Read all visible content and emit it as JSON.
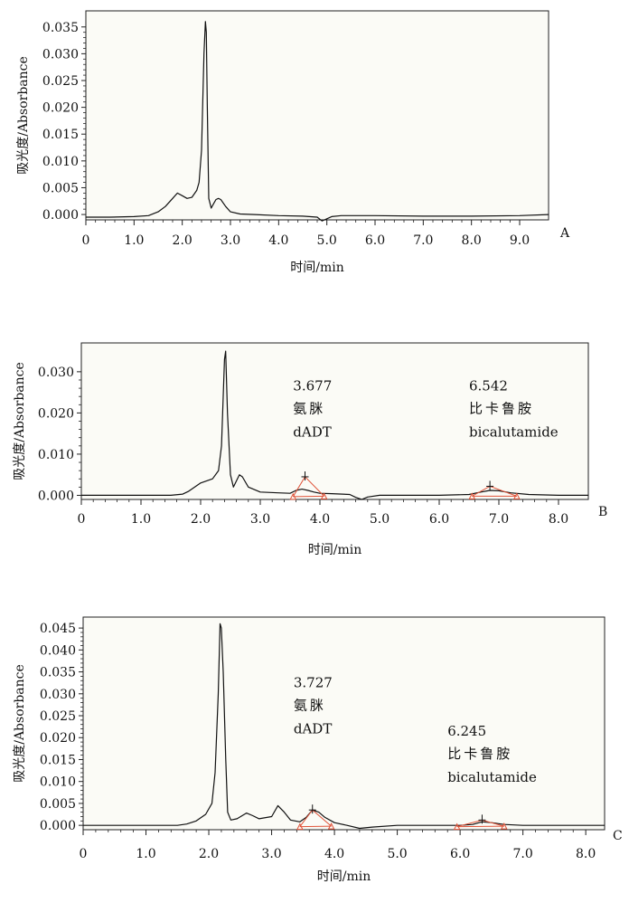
{
  "chart_data": [
    {
      "type": "line",
      "panel_label": "A",
      "xlabel": "时间/min",
      "ylabel": "吸光度/Absorbance",
      "xlim": [
        0,
        9.6
      ],
      "ylim": [
        -0.001,
        0.038
      ],
      "x_ticks": [
        0,
        1.0,
        2.0,
        3.0,
        4.0,
        5.0,
        6.0,
        7.0,
        8.0,
        9.0
      ],
      "x_tick_labels": [
        "0",
        "1.0",
        "2.0",
        "3.0",
        "4.0",
        "5.0",
        "6.0",
        "7.0",
        "8.0",
        "9.0"
      ],
      "y_ticks": [
        0.0,
        0.005,
        0.01,
        0.015,
        0.02,
        0.025,
        0.03,
        0.035
      ],
      "y_tick_labels": [
        "0.000",
        "0.005",
        "0.010",
        "0.015",
        "0.020",
        "0.025",
        "0.030",
        "0.035"
      ],
      "series": [
        {
          "x": [
            0,
            0.5,
            1.0,
            1.3,
            1.5,
            1.65,
            1.8,
            1.9,
            2.0,
            2.1,
            2.2,
            2.3,
            2.35,
            2.4,
            2.45,
            2.48,
            2.5,
            2.52,
            2.55,
            2.6,
            2.65,
            2.7,
            2.75,
            2.8,
            2.9,
            3.0,
            3.2,
            3.5,
            4.0,
            4.5,
            4.8,
            4.9,
            5.0,
            5.1,
            5.3,
            6.0,
            7.0,
            8.0,
            9.0,
            9.6
          ],
          "y": [
            -0.0005,
            -0.0005,
            -0.0004,
            -0.0002,
            0.0005,
            0.0015,
            0.003,
            0.004,
            0.0035,
            0.003,
            0.0032,
            0.0045,
            0.006,
            0.012,
            0.03,
            0.036,
            0.034,
            0.02,
            0.003,
            0.0012,
            0.002,
            0.0028,
            0.003,
            0.0028,
            0.0015,
            0.0005,
            0.0001,
            0.0,
            -0.0002,
            -0.0003,
            -0.0005,
            -0.0012,
            -0.0008,
            -0.0004,
            -0.0002,
            -0.0002,
            -0.0003,
            -0.0003,
            -0.0002,
            0.0
          ]
        }
      ],
      "annotations": []
    },
    {
      "type": "line",
      "panel_label": "B",
      "xlabel": "时间/min",
      "ylabel": "吸光度/Absorbance",
      "xlim": [
        0,
        8.5
      ],
      "ylim": [
        -0.001,
        0.037
      ],
      "x_ticks": [
        0,
        1.0,
        2.0,
        3.0,
        4.0,
        5.0,
        6.0,
        7.0,
        8.0
      ],
      "x_tick_labels": [
        "0",
        "1.0",
        "2.0",
        "3.0",
        "4.0",
        "5.0",
        "6.0",
        "7.0",
        "8.0"
      ],
      "y_ticks": [
        0.0,
        0.01,
        0.02,
        0.03
      ],
      "y_tick_labels": [
        "0.000",
        "0.010",
        "0.020",
        "0.030"
      ],
      "series": [
        {
          "x": [
            0,
            1.0,
            1.5,
            1.7,
            1.8,
            2.0,
            2.2,
            2.3,
            2.35,
            2.4,
            2.42,
            2.45,
            2.5,
            2.55,
            2.6,
            2.65,
            2.7,
            2.8,
            3.0,
            3.3,
            3.5,
            3.6,
            3.7,
            3.8,
            3.9,
            4.0,
            4.2,
            4.5,
            4.6,
            4.7,
            4.8,
            5.0,
            6.0,
            6.5,
            6.7,
            6.85,
            7.0,
            7.2,
            7.5,
            8.0,
            8.5
          ],
          "y": [
            0.0,
            0.0,
            0.0,
            0.0003,
            0.001,
            0.003,
            0.004,
            0.006,
            0.012,
            0.033,
            0.035,
            0.02,
            0.005,
            0.002,
            0.0035,
            0.005,
            0.0045,
            0.002,
            0.0008,
            0.0006,
            0.0005,
            0.0012,
            0.0015,
            0.0012,
            0.0008,
            0.0005,
            0.0004,
            0.0002,
            -0.0005,
            -0.001,
            -0.0004,
            0.0,
            0.0,
            0.0002,
            0.0008,
            0.0012,
            0.0011,
            0.0006,
            0.0002,
            0.0,
            0.0
          ]
        }
      ],
      "annotations": [
        {
          "retention_time": "3.677",
          "name_cn": "氨脒",
          "name_en": "dADT",
          "apex_x": 3.75,
          "apex_y": 0.0045,
          "base_start_x": 3.55,
          "base_start_y": -0.0003,
          "base_end_x": 4.07,
          "base_end_y": -0.0002,
          "label_x": 3.55,
          "label_y": 0.0255
        },
        {
          "retention_time": "6.542",
          "name_cn": "比卡鲁胺",
          "name_en": "bicalutamide",
          "apex_x": 6.85,
          "apex_y": 0.0022,
          "base_start_x": 6.55,
          "base_start_y": -0.0002,
          "base_end_x": 7.3,
          "base_end_y": -0.0002,
          "label_x": 6.5,
          "label_y": 0.0255
        }
      ]
    },
    {
      "type": "line",
      "panel_label": "C",
      "xlabel": "时间/min",
      "ylabel": "吸光度/Absorbance",
      "xlim": [
        0,
        8.3
      ],
      "ylim": [
        -0.001,
        0.0475
      ],
      "x_ticks": [
        0,
        1.0,
        2.0,
        3.0,
        4.0,
        5.0,
        6.0,
        7.0,
        8.0
      ],
      "x_tick_labels": [
        "0",
        "1.0",
        "2.0",
        "3.0",
        "4.0",
        "5.0",
        "6.0",
        "7.0",
        "8.0"
      ],
      "y_ticks": [
        0.0,
        0.005,
        0.01,
        0.015,
        0.02,
        0.025,
        0.03,
        0.035,
        0.04,
        0.045
      ],
      "y_tick_labels": [
        "0.000",
        "0.005",
        "0.010",
        "0.015",
        "0.020",
        "0.025",
        "0.030",
        "0.035",
        "0.040",
        "0.045"
      ],
      "series": [
        {
          "x": [
            0,
            1.0,
            1.5,
            1.65,
            1.8,
            1.95,
            2.05,
            2.1,
            2.15,
            2.18,
            2.2,
            2.23,
            2.27,
            2.3,
            2.35,
            2.45,
            2.6,
            2.7,
            2.8,
            3.0,
            3.1,
            3.2,
            3.3,
            3.45,
            3.55,
            3.65,
            3.75,
            3.85,
            4.0,
            4.2,
            4.4,
            4.6,
            5.0,
            5.5,
            6.0,
            6.2,
            6.35,
            6.5,
            6.7,
            7.0,
            8.0,
            8.3
          ],
          "y": [
            0.0,
            0.0,
            0.0,
            0.0003,
            0.001,
            0.0025,
            0.005,
            0.012,
            0.03,
            0.046,
            0.045,
            0.035,
            0.015,
            0.003,
            0.0012,
            0.0015,
            0.0028,
            0.0022,
            0.0015,
            0.002,
            0.0045,
            0.003,
            0.0012,
            0.0008,
            0.0018,
            0.0035,
            0.003,
            0.0018,
            0.0006,
            0.0,
            -0.0007,
            -0.0004,
            0.0,
            0.0,
            0.0,
            0.0002,
            0.0008,
            0.0006,
            0.0002,
            0.0,
            0.0,
            0.0
          ]
        }
      ],
      "annotations": [
        {
          "retention_time": "3.727",
          "name_cn": "氨脒",
          "name_en": "dADT",
          "apex_x": 3.65,
          "apex_y": 0.0035,
          "base_start_x": 3.45,
          "base_start_y": -0.0003,
          "base_end_x": 3.95,
          "base_end_y": -0.0002,
          "label_x": 3.35,
          "label_y": 0.0315
        },
        {
          "retention_time": "6.245",
          "name_cn": "比卡鲁胺",
          "name_en": "bicalutamide",
          "apex_x": 6.35,
          "apex_y": 0.0012,
          "base_start_x": 5.95,
          "base_start_y": -0.0003,
          "base_end_x": 6.7,
          "base_end_y": -0.0002,
          "label_x": 5.8,
          "label_y": 0.0205
        }
      ]
    }
  ]
}
